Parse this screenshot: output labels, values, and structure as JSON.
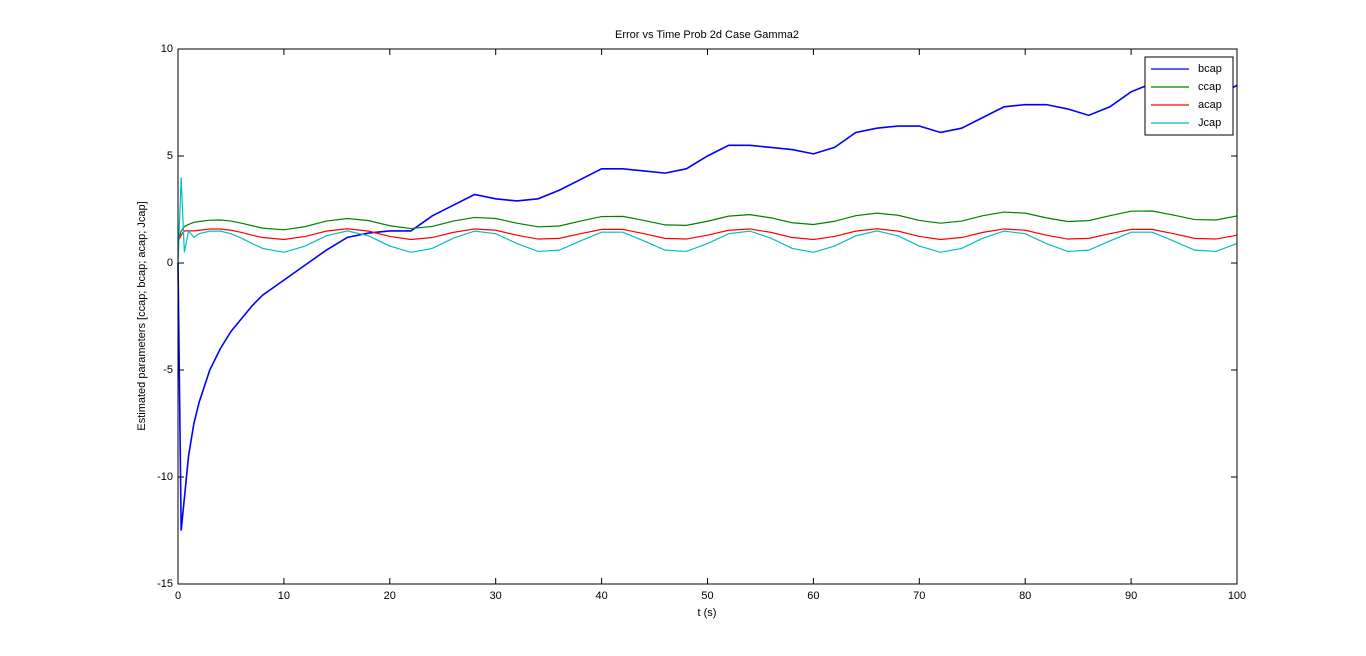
{
  "chart_data": {
    "type": "line",
    "title": "Error vs Time Prob 2d Case Gamma2",
    "xlabel": "t (s)",
    "ylabel": "Estimated parameters [ccap; bcap; acap; Jcap]",
    "x": [
      0,
      0.3,
      0.6,
      1,
      1.5,
      2,
      3,
      4,
      5,
      6,
      7,
      8,
      10,
      12,
      14,
      16,
      18,
      20,
      22,
      24,
      26,
      28,
      30,
      32,
      34,
      36,
      38,
      40,
      42,
      44,
      46,
      48,
      50,
      52,
      54,
      56,
      58,
      60,
      62,
      64,
      66,
      68,
      70,
      72,
      74,
      76,
      78,
      80,
      82,
      84,
      86,
      88,
      90,
      92,
      94,
      96,
      98,
      100
    ],
    "series": [
      {
        "name": "bcap",
        "color": "#0000ff",
        "values": [
          0,
          -12.5,
          -11,
          -9,
          -7.5,
          -6.5,
          -5,
          -4,
          -3.2,
          -2.6,
          -2,
          -1.5,
          -0.8,
          -0.1,
          0.6,
          1.2,
          1.4,
          1.5,
          1.5,
          2.2,
          2.7,
          3.2,
          3.0,
          2.9,
          3.0,
          3.4,
          3.9,
          4.4,
          4.4,
          4.3,
          4.2,
          4.4,
          5.0,
          5.5,
          5.5,
          5.4,
          5.3,
          5.1,
          5.4,
          6.1,
          6.3,
          6.4,
          6.4,
          6.1,
          6.3,
          6.8,
          7.3,
          7.4,
          7.4,
          7.2,
          6.9,
          7.3,
          8.0,
          8.4,
          8.0,
          7.7,
          7.8,
          8.3
        ]
      },
      {
        "name": "ccap",
        "color": "#008000",
        "values": [
          1.0,
          1.5,
          1.7,
          1.8,
          1.9,
          1.94,
          2.0,
          2.01,
          1.96,
          1.86,
          1.74,
          1.63,
          1.55,
          1.7,
          1.96,
          2.08,
          1.98,
          1.74,
          1.61,
          1.71,
          1.96,
          2.13,
          2.08,
          1.86,
          1.69,
          1.73,
          1.96,
          2.17,
          2.18,
          1.99,
          1.78,
          1.76,
          1.95,
          2.19,
          2.26,
          2.11,
          1.88,
          1.8,
          1.95,
          2.21,
          2.33,
          2.23,
          1.99,
          1.86,
          1.96,
          2.21,
          2.38,
          2.33,
          2.11,
          1.94,
          1.98,
          2.21,
          2.42,
          2.43,
          2.24,
          2.03,
          2.01,
          2.2
        ]
      },
      {
        "name": "acap",
        "color": "#ff0000",
        "values": [
          1.0,
          1.3,
          1.5,
          1.5,
          1.5,
          1.53,
          1.59,
          1.59,
          1.53,
          1.43,
          1.3,
          1.19,
          1.1,
          1.24,
          1.49,
          1.6,
          1.49,
          1.24,
          1.1,
          1.19,
          1.43,
          1.59,
          1.53,
          1.3,
          1.12,
          1.15,
          1.37,
          1.57,
          1.57,
          1.37,
          1.15,
          1.12,
          1.3,
          1.53,
          1.59,
          1.43,
          1.19,
          1.1,
          1.24,
          1.49,
          1.6,
          1.49,
          1.24,
          1.1,
          1.19,
          1.43,
          1.59,
          1.53,
          1.3,
          1.12,
          1.15,
          1.37,
          1.57,
          1.57,
          1.37,
          1.15,
          1.12,
          1.3
        ]
      },
      {
        "name": "Jcap",
        "color": "#00bfbf",
        "values": [
          0,
          4.0,
          0.5,
          1.5,
          1.2,
          1.37,
          1.49,
          1.49,
          1.37,
          1.16,
          0.91,
          0.68,
          0.5,
          0.79,
          1.27,
          1.5,
          1.27,
          0.79,
          0.5,
          0.68,
          1.16,
          1.49,
          1.37,
          0.91,
          0.54,
          0.6,
          1.03,
          1.44,
          1.44,
          1.03,
          0.6,
          0.54,
          0.91,
          1.37,
          1.49,
          1.16,
          0.68,
          0.5,
          0.79,
          1.27,
          1.5,
          1.27,
          0.79,
          0.5,
          0.68,
          1.16,
          1.49,
          1.37,
          0.91,
          0.54,
          0.6,
          1.03,
          1.44,
          1.44,
          1.03,
          0.6,
          0.54,
          0.91
        ]
      }
    ],
    "xlim": [
      0,
      100
    ],
    "xticks": [
      0,
      10,
      20,
      30,
      40,
      50,
      60,
      70,
      80,
      90,
      100
    ],
    "ylim": [
      -15,
      10
    ],
    "yticks": [
      -15,
      -10,
      -5,
      0,
      5,
      10
    ],
    "legend": "upper right"
  }
}
